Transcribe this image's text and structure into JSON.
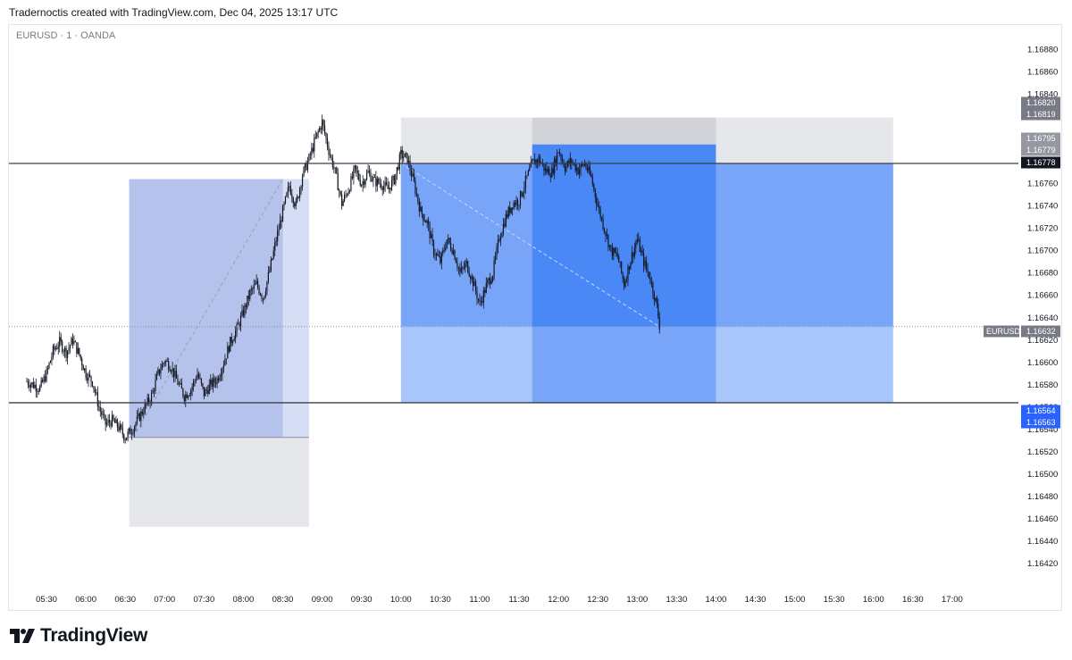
{
  "header": {
    "attribution": "Tradernoctis created with TradingView.com, Dec 04, 2025 13:17 UTC"
  },
  "symbol": {
    "label": "EURUSD · 1 · OANDA"
  },
  "brand": {
    "name": "TradingView",
    "icon": "tradingview-logo-icon"
  },
  "colors": {
    "candle": "#131722",
    "long_box_fill": "#b5c2ec",
    "long_box_light": "#d6def5",
    "stop_box_fill": "#e6e7eb",
    "short_entry_fill": "#79a5f8",
    "short_profit_fill": "#a9c6fb",
    "short_dark_fill": "#4a89f5",
    "level_line": "#3c3f4a",
    "dashed_line": "#9aa0ad",
    "blue_tag": "#2962ff",
    "grey_tag": "#787b86"
  },
  "chart_data": {
    "type": "candlestick",
    "symbol": "EURUSD",
    "timeframe": "1",
    "broker": "OANDA",
    "x_ticks": [
      "05:30",
      "06:00",
      "06:30",
      "07:00",
      "07:30",
      "08:00",
      "08:30",
      "09:00",
      "09:30",
      "10:00",
      "10:30",
      "11:00",
      "11:30",
      "12:00",
      "12:30",
      "13:00",
      "13:30",
      "14:00",
      "14:30",
      "15:00",
      "15:30",
      "16:00",
      "16:30",
      "17:00"
    ],
    "x_range_minutes": [
      315,
      1050
    ],
    "y_ticks": [
      "1.16880",
      "1.16860",
      "1.16840",
      "1.16820",
      "1.16800",
      "1.16780",
      "1.16760",
      "1.16740",
      "1.16720",
      "1.16700",
      "1.16680",
      "1.16660",
      "1.16640",
      "1.16620",
      "1.16600",
      "1.16580",
      "1.16560",
      "1.16540",
      "1.16520",
      "1.16500",
      "1.16480",
      "1.16460",
      "1.16440",
      "1.16420"
    ],
    "ylim": [
      1.16405,
      1.16897
    ],
    "close_path": [
      [
        315,
        1.16583
      ],
      [
        320,
        1.1658
      ],
      [
        325,
        1.16577
      ],
      [
        330,
        1.1659
      ],
      [
        335,
        1.1661
      ],
      [
        340,
        1.16618
      ],
      [
        345,
        1.16609
      ],
      [
        350,
        1.1662
      ],
      [
        355,
        1.16607
      ],
      [
        360,
        1.1659
      ],
      [
        365,
        1.16583
      ],
      [
        370,
        1.1656
      ],
      [
        375,
        1.16545
      ],
      [
        380,
        1.16548
      ],
      [
        385,
        1.16542
      ],
      [
        390,
        1.16533
      ],
      [
        395,
        1.1654
      ],
      [
        400,
        1.1655
      ],
      [
        405,
        1.1656
      ],
      [
        410,
        1.1657
      ],
      [
        415,
        1.1659
      ],
      [
        420,
        1.16602
      ],
      [
        425,
        1.16596
      ],
      [
        430,
        1.16582
      ],
      [
        435,
        1.1657
      ],
      [
        440,
        1.16576
      ],
      [
        445,
        1.1659
      ],
      [
        450,
        1.16572
      ],
      [
        455,
        1.1658
      ],
      [
        460,
        1.16585
      ],
      [
        465,
        1.166
      ],
      [
        470,
        1.16618
      ],
      [
        475,
        1.1663
      ],
      [
        480,
        1.16645
      ],
      [
        485,
        1.16662
      ],
      [
        490,
        1.1667
      ],
      [
        495,
        1.16658
      ],
      [
        500,
        1.16682
      ],
      [
        505,
        1.1671
      ],
      [
        510,
        1.16735
      ],
      [
        515,
        1.16758
      ],
      [
        520,
        1.1674
      ],
      [
        525,
        1.16768
      ],
      [
        530,
        1.16782
      ],
      [
        535,
        1.168
      ],
      [
        540,
        1.16815
      ],
      [
        545,
        1.1679
      ],
      [
        550,
        1.1677
      ],
      [
        555,
        1.16742
      ],
      [
        560,
        1.16755
      ],
      [
        565,
        1.16772
      ],
      [
        570,
        1.1676
      ],
      [
        575,
        1.1677
      ],
      [
        580,
        1.16762
      ],
      [
        585,
        1.1676
      ],
      [
        590,
        1.16755
      ],
      [
        595,
        1.16764
      ],
      [
        600,
        1.16786
      ],
      [
        605,
        1.16782
      ],
      [
        610,
        1.1676
      ],
      [
        615,
        1.16735
      ],
      [
        620,
        1.16725
      ],
      [
        625,
        1.167
      ],
      [
        630,
        1.1669
      ],
      [
        635,
        1.1671
      ],
      [
        640,
        1.167
      ],
      [
        645,
        1.1668
      ],
      [
        650,
        1.16688
      ],
      [
        655,
        1.16672
      ],
      [
        660,
        1.16652
      ],
      [
        665,
        1.16668
      ],
      [
        670,
        1.1668
      ],
      [
        675,
        1.16712
      ],
      [
        680,
        1.1673
      ],
      [
        685,
        1.16742
      ],
      [
        690,
        1.16745
      ],
      [
        695,
        1.16762
      ],
      [
        700,
        1.16778
      ],
      [
        705,
        1.16782
      ],
      [
        710,
        1.16772
      ],
      [
        715,
        1.1677
      ],
      [
        720,
        1.1679
      ],
      [
        725,
        1.16775
      ],
      [
        730,
        1.1678
      ],
      [
        735,
        1.16772
      ],
      [
        740,
        1.16778
      ],
      [
        745,
        1.16765
      ],
      [
        750,
        1.1674
      ],
      [
        755,
        1.1672
      ],
      [
        760,
        1.167
      ],
      [
        765,
        1.16695
      ],
      [
        770,
        1.1667
      ],
      [
        775,
        1.16692
      ],
      [
        780,
        1.1671
      ],
      [
        785,
        1.1669
      ],
      [
        790,
        1.16675
      ],
      [
        795,
        1.1665
      ],
      [
        797,
        1.16633
      ]
    ],
    "levels": [
      {
        "price": 1.16778,
        "label": "1.16778",
        "style": "solid"
      },
      {
        "price": 1.16564,
        "label": "1.16564",
        "style": "solid"
      },
      {
        "price": 1.16632,
        "label": "1.16632",
        "style": "dotted"
      }
    ],
    "price_tags": [
      {
        "price": 1.1682,
        "label": "1.16820",
        "color": "grey"
      },
      {
        "price": 1.16819,
        "label": "1.16819",
        "color": "grey"
      },
      {
        "price": 1.16795,
        "label": "1.16795",
        "color": "lightgrey"
      },
      {
        "price": 1.16779,
        "label": "1.16779",
        "color": "lightgrey"
      },
      {
        "price": 1.16778,
        "label": "1.16778",
        "color": "black"
      },
      {
        "price": 1.16632,
        "label": "1.16632",
        "color": "grey",
        "prefix": "EURUSD"
      },
      {
        "price": 1.16564,
        "label": "1.16564",
        "color": "blue"
      },
      {
        "price": 1.16563,
        "label": "1.16563",
        "color": "blue"
      }
    ],
    "long_position": {
      "start": 393,
      "end": 530,
      "entry": 1.16533,
      "target": 1.16764,
      "stop": 1.16453,
      "shade_end": 510
    },
    "short_position_outer": {
      "start": 600,
      "end": 975,
      "entry": 1.16632,
      "stop": 1.16819,
      "target": 1.16564
    },
    "short_position_inner": {
      "start": 700,
      "end": 840,
      "entry": 1.16632,
      "stop": 1.16819,
      "fill_top": 1.16795,
      "target": 1.16564
    }
  }
}
